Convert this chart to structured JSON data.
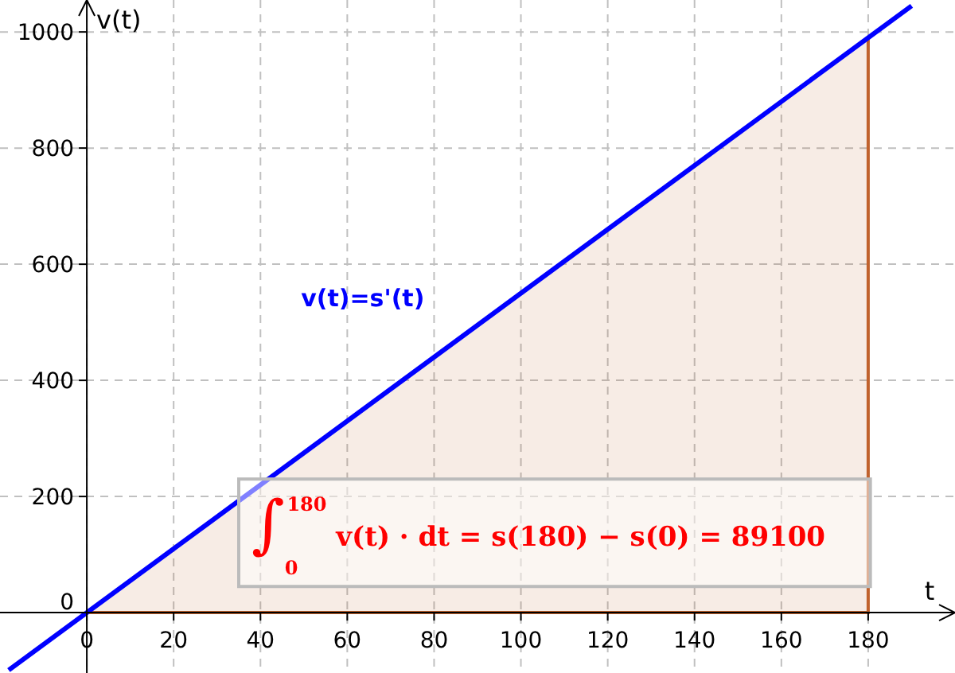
{
  "chart_data": {
    "type": "line",
    "xlabel": "t",
    "ylabel": "v(t)",
    "xlim": [
      -20,
      200
    ],
    "ylim": [
      -104,
      1055
    ],
    "xticks": [
      0,
      20,
      40,
      60,
      80,
      100,
      120,
      140,
      160,
      180
    ],
    "yticks": [
      0,
      200,
      400,
      600,
      800,
      1000
    ],
    "grid": true,
    "marker": "none",
    "line_style": "solid",
    "series": [
      {
        "type": "area",
        "color": "#c0622d",
        "x": [
          0,
          180
        ],
        "values": [
          0,
          990
        ]
      },
      {
        "name": "v(t)=s'(t)",
        "color": "#0000ff",
        "x": [
          -18,
          190
        ],
        "values": [
          -99,
          1045
        ]
      }
    ],
    "annotations": [
      "∫$_{0}$$^{180}$ v(t) · dt = s(180) − s(0) = 89100"
    ]
  }
}
